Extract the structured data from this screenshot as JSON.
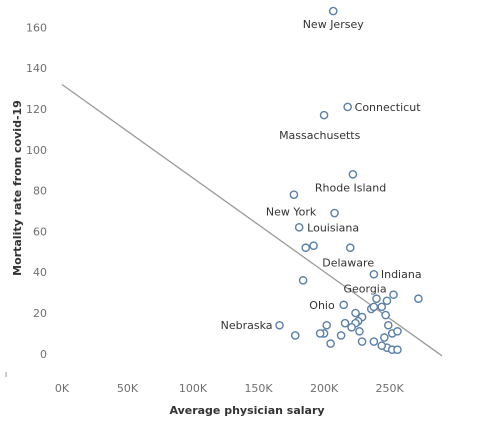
{
  "chart_data": {
    "type": "scatter",
    "title": "",
    "xlabel": "Average physician salary",
    "ylabel": "Mortality rate from covid-19",
    "xlim": [
      0,
      290000
    ],
    "ylim": [
      -5,
      170
    ],
    "x_ticks": [
      {
        "value": 0,
        "label": "0K"
      },
      {
        "value": 50000,
        "label": "50K"
      },
      {
        "value": 100000,
        "label": "100K"
      },
      {
        "value": 150000,
        "label": "150K"
      },
      {
        "value": 200000,
        "label": "200K"
      },
      {
        "value": 250000,
        "label": "250K"
      }
    ],
    "y_ticks": [
      {
        "value": 0,
        "label": "0"
      },
      {
        "value": 20,
        "label": "20"
      },
      {
        "value": 40,
        "label": "40"
      },
      {
        "value": 60,
        "label": "60"
      },
      {
        "value": 80,
        "label": "80"
      },
      {
        "value": 100,
        "label": "100"
      },
      {
        "value": 120,
        "label": "120"
      },
      {
        "value": 140,
        "label": "140"
      },
      {
        "value": 160,
        "label": "160"
      }
    ],
    "grid": false,
    "trend_line": {
      "x": [
        0,
        290000
      ],
      "y": [
        132,
        -1
      ]
    },
    "marker_color": "#5a7fa8",
    "trend_color": "#9a9a9a",
    "points": [
      {
        "x": 207000,
        "y": 168,
        "label": "New Jersey"
      },
      {
        "x": 218000,
        "y": 121,
        "label": "Connecticut"
      },
      {
        "x": 200000,
        "y": 117,
        "label": "Massachusetts"
      },
      {
        "x": 222000,
        "y": 88,
        "label": "Rhode Island"
      },
      {
        "x": 177000,
        "y": 78,
        "label": "New York"
      },
      {
        "x": 181000,
        "y": 62,
        "label": "Louisiana"
      },
      {
        "x": 220000,
        "y": 52,
        "label": "Delaware"
      },
      {
        "x": 238000,
        "y": 39,
        "label": "Indiana"
      },
      {
        "x": 240000,
        "y": 27,
        "label": "Georgia"
      },
      {
        "x": 215000,
        "y": 24,
        "label": "Ohio"
      },
      {
        "x": 166000,
        "y": 14,
        "label": "Nebraska"
      },
      {
        "x": 208000,
        "y": 69
      },
      {
        "x": 186000,
        "y": 52
      },
      {
        "x": 192000,
        "y": 53
      },
      {
        "x": 184000,
        "y": 36
      },
      {
        "x": 272000,
        "y": 27
      },
      {
        "x": 253000,
        "y": 29
      },
      {
        "x": 248000,
        "y": 26
      },
      {
        "x": 244000,
        "y": 23
      },
      {
        "x": 236000,
        "y": 22
      },
      {
        "x": 238000,
        "y": 23
      },
      {
        "x": 229000,
        "y": 18
      },
      {
        "x": 247000,
        "y": 19
      },
      {
        "x": 224000,
        "y": 20
      },
      {
        "x": 226000,
        "y": 16
      },
      {
        "x": 224000,
        "y": 15
      },
      {
        "x": 216000,
        "y": 15
      },
      {
        "x": 221000,
        "y": 13
      },
      {
        "x": 249000,
        "y": 14
      },
      {
        "x": 252000,
        "y": 10
      },
      {
        "x": 256000,
        "y": 11
      },
      {
        "x": 202000,
        "y": 14
      },
      {
        "x": 200000,
        "y": 10
      },
      {
        "x": 197000,
        "y": 10
      },
      {
        "x": 213000,
        "y": 9
      },
      {
        "x": 227000,
        "y": 11
      },
      {
        "x": 178000,
        "y": 9
      },
      {
        "x": 246000,
        "y": 8
      },
      {
        "x": 205000,
        "y": 5
      },
      {
        "x": 229000,
        "y": 6
      },
      {
        "x": 238000,
        "y": 6
      },
      {
        "x": 248000,
        "y": 3
      },
      {
        "x": 252000,
        "y": 2
      },
      {
        "x": 256000,
        "y": 2
      },
      {
        "x": 244000,
        "y": 4
      }
    ]
  }
}
